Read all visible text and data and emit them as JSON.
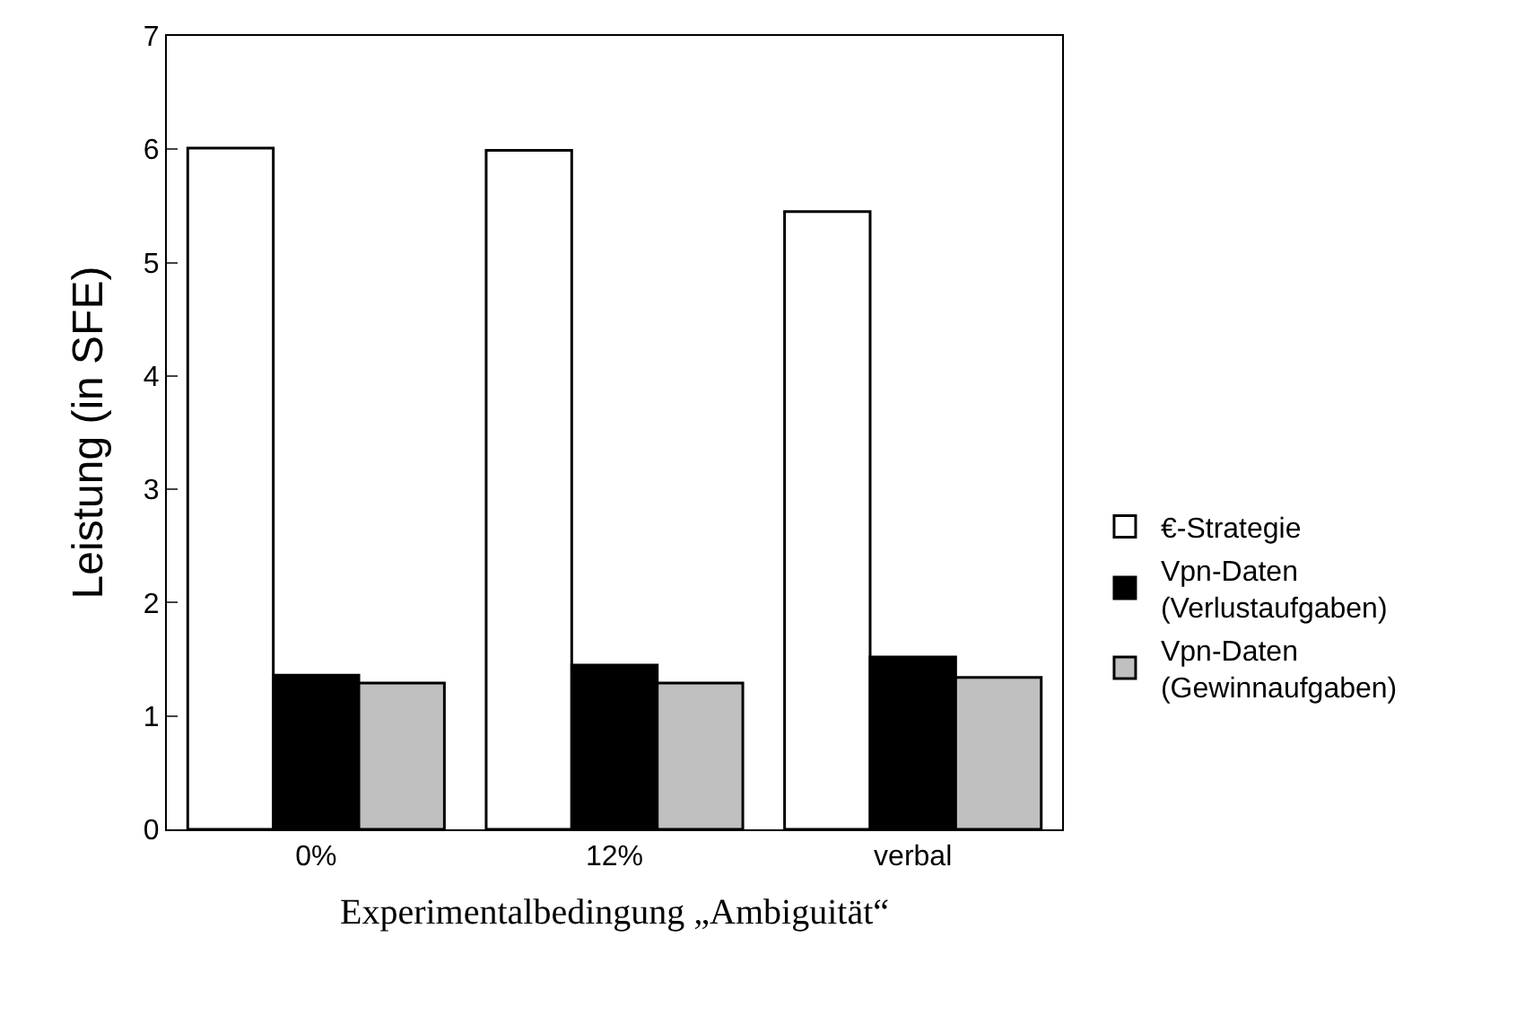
{
  "chart_data": {
    "type": "bar",
    "xlabel": "Experimentalbedingung „Ambiguität“",
    "ylabel": "Leistung (in SFE)",
    "categories": [
      "0%",
      "12%",
      "verbal"
    ],
    "series": [
      {
        "name": "€-Strategie",
        "color": "#ffffff",
        "values": [
          6.01,
          5.99,
          5.45
        ]
      },
      {
        "name": "Vpn-Daten\n(Verlustaufgaben)",
        "color": "#000000",
        "values": [
          1.36,
          1.45,
          1.52
        ]
      },
      {
        "name": "Vpn-Daten\n(Gewinnaufgaben)",
        "color": "#c0c0c0",
        "values": [
          1.29,
          1.29,
          1.34
        ]
      }
    ],
    "ylim": [
      0,
      7
    ],
    "yticks": [
      0,
      1,
      2,
      3,
      4,
      5,
      6,
      7
    ],
    "legend": "right"
  }
}
